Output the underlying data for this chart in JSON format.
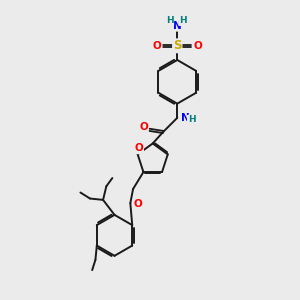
{
  "bg_color": "#ebebeb",
  "bond_color": "#1a1a1a",
  "bond_width": 1.4,
  "atom_colors": {
    "N": "#0000ff",
    "O": "#ff0000",
    "S": "#ccaa00",
    "H": "#008080",
    "C": "#1a1a1a"
  },
  "xlim": [
    0,
    10
  ],
  "ylim": [
    0,
    11
  ]
}
